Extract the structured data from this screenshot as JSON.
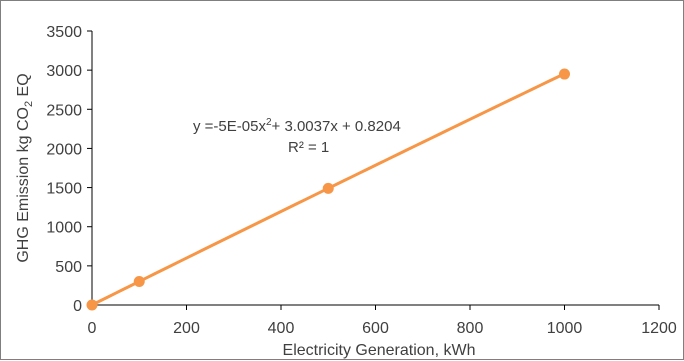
{
  "chart_data": {
    "type": "scatter",
    "title": "",
    "xlabel": "Electricity Generation, kWh",
    "ylabel_main": "GHG Emission kg CO",
    "ylabel_sub": "2",
    "ylabel_end": " EQ",
    "xlim": [
      0,
      1200
    ],
    "ylim": [
      0,
      3500
    ],
    "x_ticks": [
      "0",
      "200",
      "400",
      "600",
      "800",
      "1000",
      "1200"
    ],
    "y_ticks": [
      "0",
      "500",
      "1000",
      "1500",
      "2000",
      "2500",
      "3000",
      "3500"
    ],
    "grid": false,
    "legend": "none",
    "series": [
      {
        "x": [
          0,
          100,
          500,
          1000
        ],
        "y": [
          0,
          300,
          1490,
          2950
        ],
        "color": "#F79646",
        "marker": "circle",
        "line": true
      }
    ],
    "trendline": {
      "type": "polynomial",
      "order": 2,
      "coefficients": [
        -5e-05,
        3.0037,
        0.8204
      ],
      "color": "#F79646"
    },
    "annotation": {
      "eq_prefix": "y =-5E-05x",
      "eq_sup": "2",
      "eq_suffix": "+ 3.0037x + 0.8204",
      "r2": "R² = 1"
    }
  }
}
